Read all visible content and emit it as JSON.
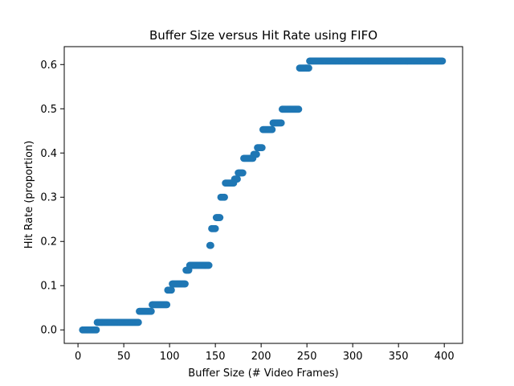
{
  "chart_data": {
    "type": "scatter",
    "title": "Buffer Size versus Hit Rate using FIFO",
    "xlabel": "Buffer Size (# Video Frames)",
    "ylabel": "Hit Rate (proportion)",
    "xlim": [
      -15,
      420
    ],
    "ylim": [
      -0.0305,
      0.6405
    ],
    "xticks": [
      0,
      50,
      100,
      150,
      200,
      250,
      300,
      350,
      400
    ],
    "yticks": [
      0.0,
      0.1,
      0.2,
      0.3,
      0.4,
      0.5,
      0.6
    ],
    "ytick_labels": [
      "0.0",
      "0.1",
      "0.2",
      "0.3",
      "0.4",
      "0.5",
      "0.6"
    ],
    "grid": false,
    "marker_color": "#1f77b4",
    "segments": [
      {
        "x_start": 5,
        "x_end": 20,
        "step": 1,
        "y": 0.0
      },
      {
        "x_start": 21,
        "x_end": 66,
        "step": 1,
        "y": 0.017
      },
      {
        "x_start": 67,
        "x_end": 80,
        "step": 1,
        "y": 0.042
      },
      {
        "x_start": 81,
        "x_end": 97,
        "step": 1,
        "y": 0.057
      },
      {
        "x_start": 98,
        "x_end": 102,
        "step": 1,
        "y": 0.09
      },
      {
        "x_start": 103,
        "x_end": 117,
        "step": 1,
        "y": 0.104
      },
      {
        "x_start": 118,
        "x_end": 121,
        "step": 1,
        "y": 0.135
      },
      {
        "x_start": 122,
        "x_end": 143,
        "step": 1,
        "y": 0.146
      },
      {
        "x_start": 144,
        "x_end": 145,
        "step": 1,
        "y": 0.191
      },
      {
        "x_start": 146,
        "x_end": 150,
        "step": 1,
        "y": 0.229
      },
      {
        "x_start": 151,
        "x_end": 155,
        "step": 1,
        "y": 0.254
      },
      {
        "x_start": 156,
        "x_end": 160,
        "step": 1,
        "y": 0.3
      },
      {
        "x_start": 161,
        "x_end": 170,
        "step": 1,
        "y": 0.332
      },
      {
        "x_start": 171,
        "x_end": 174,
        "step": 1,
        "y": 0.341
      },
      {
        "x_start": 175,
        "x_end": 180,
        "step": 1,
        "y": 0.355
      },
      {
        "x_start": 181,
        "x_end": 191,
        "step": 1,
        "y": 0.388
      },
      {
        "x_start": 192,
        "x_end": 195,
        "step": 1,
        "y": 0.397
      },
      {
        "x_start": 196,
        "x_end": 201,
        "step": 1,
        "y": 0.412
      },
      {
        "x_start": 202,
        "x_end": 212,
        "step": 1,
        "y": 0.453
      },
      {
        "x_start": 213,
        "x_end": 222,
        "step": 1,
        "y": 0.468
      },
      {
        "x_start": 223,
        "x_end": 241,
        "step": 1,
        "y": 0.499
      },
      {
        "x_start": 242,
        "x_end": 252,
        "step": 1,
        "y": 0.592
      },
      {
        "x_start": 253,
        "x_end": 398,
        "step": 1,
        "y": 0.608
      }
    ]
  }
}
